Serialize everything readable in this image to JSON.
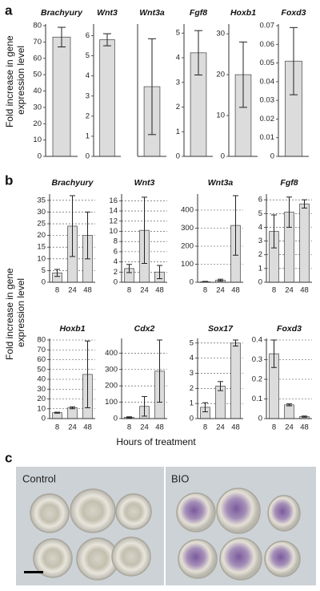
{
  "figure": {
    "panels": [
      {
        "label": "a",
        "y_label": [
          "Fold increase in gene",
          "expression level"
        ]
      },
      {
        "label": "b",
        "y_label": [
          "Fold increase in gene",
          "expression level"
        ],
        "x_label": "Hours of treatment"
      },
      {
        "label": "c",
        "images": [
          "Control",
          "BIO"
        ]
      }
    ]
  },
  "chart_data": [
    {
      "type": "bar",
      "title": "Brachyury",
      "categories": [
        null
      ],
      "values": [
        73
      ],
      "errors": [
        6
      ],
      "ylim": [
        0,
        80
      ],
      "yticks": [
        0,
        10,
        20,
        30,
        40,
        50,
        60,
        70,
        80
      ],
      "grid": false,
      "color": "#dcdcdc"
    },
    {
      "type": "bar",
      "title": "Wnt3",
      "categories": [
        null
      ],
      "values": [
        5.8
      ],
      "errors": [
        0.3
      ],
      "ylim": [
        0,
        6.5
      ],
      "yticks": [
        0,
        1,
        2,
        3,
        4,
        5,
        6
      ],
      "grid": false,
      "color": "#dcdcdc"
    },
    {
      "type": "bar",
      "title": "Wnt3a",
      "categories": [
        null
      ],
      "values": [
        32
      ],
      "errors": [
        22
      ],
      "ylim": [
        0,
        60
      ],
      "grid": false,
      "color": "#dcdcdc"
    },
    {
      "type": "bar",
      "title": "Fgf8",
      "categories": [
        null
      ],
      "values": [
        4.2
      ],
      "errors": [
        0.9
      ],
      "ylim": [
        0,
        5.3
      ],
      "yticks": [
        0,
        1,
        2,
        3,
        4,
        5
      ],
      "grid": false,
      "color": "#dcdcdc"
    },
    {
      "type": "bar",
      "title": "Hoxb1",
      "categories": [
        null
      ],
      "values": [
        20
      ],
      "errors": [
        8
      ],
      "ylim": [
        0,
        32
      ],
      "yticks": [
        0,
        10,
        20,
        30
      ],
      "grid": false,
      "color": "#dcdcdc"
    },
    {
      "type": "bar",
      "title": "Foxd3",
      "categories": [
        null
      ],
      "values": [
        0.051
      ],
      "errors": [
        0.018
      ],
      "ylim": [
        0,
        0.07
      ],
      "yticks": [
        0,
        0.01,
        0.02,
        0.03,
        0.04,
        0.05,
        0.06,
        0.07
      ],
      "grid": false,
      "color": "#dcdcdc"
    },
    {
      "type": "bar",
      "title": "Brachyury",
      "categories": [
        "8",
        "24",
        "48"
      ],
      "values": [
        4,
        24,
        20
      ],
      "errors": [
        1.5,
        13,
        10
      ],
      "ylim": [
        0,
        37
      ],
      "yticks": [
        0,
        5,
        10,
        15,
        20,
        25,
        30,
        35
      ],
      "grid": true,
      "color": "#dcdcdc"
    },
    {
      "type": "bar",
      "title": "Wnt3",
      "categories": [
        "8",
        "24",
        "48"
      ],
      "values": [
        2.7,
        10.2,
        2
      ],
      "errors": [
        0.8,
        6.5,
        1.3
      ],
      "ylim": [
        0,
        17
      ],
      "yticks": [
        0,
        2,
        4,
        6,
        8,
        10,
        12,
        14,
        16
      ],
      "grid": true,
      "color": "#dcdcdc"
    },
    {
      "type": "bar",
      "title": "Wnt3a",
      "categories": [
        "8",
        "24",
        "48"
      ],
      "values": [
        3,
        12,
        315
      ],
      "errors": [
        2,
        5,
        165
      ],
      "ylim": [
        0,
        480
      ],
      "yticks": [
        0,
        100,
        200,
        300,
        400
      ],
      "grid": true,
      "color": "#dcdcdc"
    },
    {
      "type": "bar",
      "title": "Fgf8",
      "categories": [
        "8",
        "24",
        "48"
      ],
      "values": [
        3.7,
        5.1,
        5.7
      ],
      "errors": [
        1.2,
        1.1,
        0.3
      ],
      "ylim": [
        0,
        6.3
      ],
      "yticks": [
        0,
        1,
        2,
        3,
        4,
        5,
        6
      ],
      "grid": true,
      "color": "#dcdcdc"
    },
    {
      "type": "bar",
      "title": "Hoxb1",
      "categories": [
        "8",
        "24",
        "48"
      ],
      "values": [
        6,
        11,
        45
      ],
      "errors": [
        0.5,
        1,
        34
      ],
      "ylim": [
        0,
        80
      ],
      "yticks": [
        0,
        10,
        20,
        30,
        40,
        50,
        60,
        70,
        80
      ],
      "grid": true,
      "color": "#dcdcdc"
    },
    {
      "type": "bar",
      "title": "Cdx2",
      "categories": [
        "8",
        "24",
        "48"
      ],
      "values": [
        8,
        75,
        290
      ],
      "errors": [
        3,
        60,
        190
      ],
      "ylim": [
        0,
        480
      ],
      "yticks": [
        0,
        100,
        200,
        300,
        400
      ],
      "grid": true,
      "color": "#dcdcdc"
    },
    {
      "type": "bar",
      "title": "Sox17",
      "categories": [
        "8",
        "24",
        "48"
      ],
      "values": [
        0.75,
        2.15,
        5.0
      ],
      "errors": [
        0.3,
        0.3,
        0.2
      ],
      "ylim": [
        0,
        5.2
      ],
      "yticks": [
        0,
        1,
        2,
        3,
        4,
        5
      ],
      "grid": true,
      "color": "#dcdcdc"
    },
    {
      "type": "bar",
      "title": "Foxd3",
      "categories": [
        "8",
        "24",
        "48"
      ],
      "values": [
        0.33,
        0.07,
        0.01
      ],
      "errors": [
        0.07,
        0.005,
        0.003
      ],
      "ylim": [
        0,
        0.4
      ],
      "yticks": [
        0,
        0.1,
        0.2,
        0.3,
        0.4
      ],
      "grid": true,
      "color": "#dcdcdc"
    }
  ]
}
